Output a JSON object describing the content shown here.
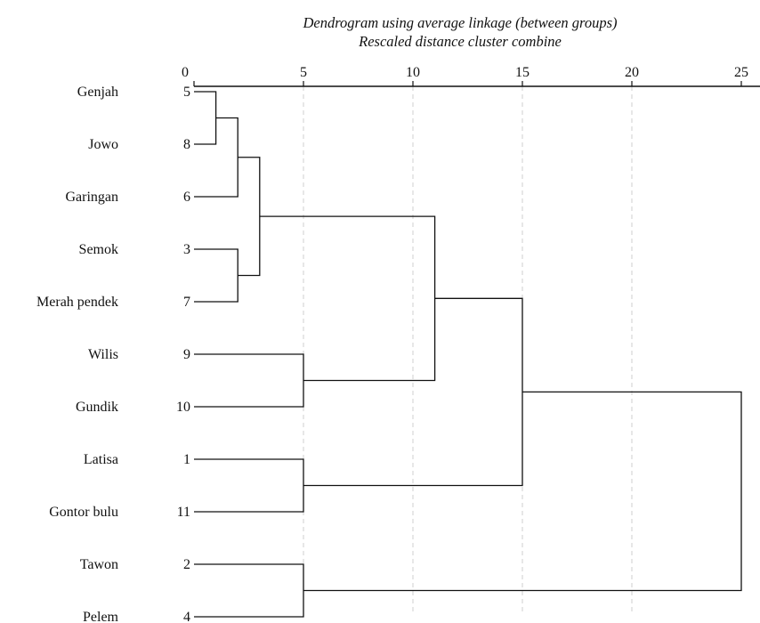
{
  "chart_data": {
    "type": "dendrogram",
    "title": "Dendrogram using average linkage (between groups)",
    "subtitle": "Rescaled distance cluster combine",
    "xlim": [
      0,
      25
    ],
    "x_ticks": [
      0,
      5,
      10,
      15,
      20,
      25
    ],
    "grid": "vertical dashed",
    "leaves": [
      {
        "name": "Genjah",
        "number": "5"
      },
      {
        "name": "Jowo",
        "number": "8"
      },
      {
        "name": "Garingan",
        "number": "6"
      },
      {
        "name": "Semok",
        "number": "3"
      },
      {
        "name": "Merah pendek",
        "number": "7"
      },
      {
        "name": "Wilis",
        "number": "9"
      },
      {
        "name": "Gundik",
        "number": "10"
      },
      {
        "name": "Latisa",
        "number": "1"
      },
      {
        "name": "Gontor bulu",
        "number": "11"
      },
      {
        "name": "Tawon",
        "number": "2"
      },
      {
        "name": "Pelem",
        "number": "4"
      }
    ],
    "merges": [
      {
        "id": "A",
        "left": "L0",
        "right": "L1",
        "distance": 1
      },
      {
        "id": "B",
        "left": "A",
        "right": "L2",
        "distance": 2
      },
      {
        "id": "C",
        "left": "L3",
        "right": "L4",
        "distance": 2
      },
      {
        "id": "D",
        "left": "B",
        "right": "C",
        "distance": 3
      },
      {
        "id": "E",
        "left": "L5",
        "right": "L6",
        "distance": 5
      },
      {
        "id": "F",
        "left": "D",
        "right": "E",
        "distance": 11
      },
      {
        "id": "G",
        "left": "L7",
        "right": "L8",
        "distance": 5
      },
      {
        "id": "H",
        "left": "F",
        "right": "G",
        "distance": 15
      },
      {
        "id": "I",
        "left": "L9",
        "right": "L10",
        "distance": 5
      },
      {
        "id": "J",
        "left": "H",
        "right": "I",
        "distance": 25
      }
    ]
  }
}
